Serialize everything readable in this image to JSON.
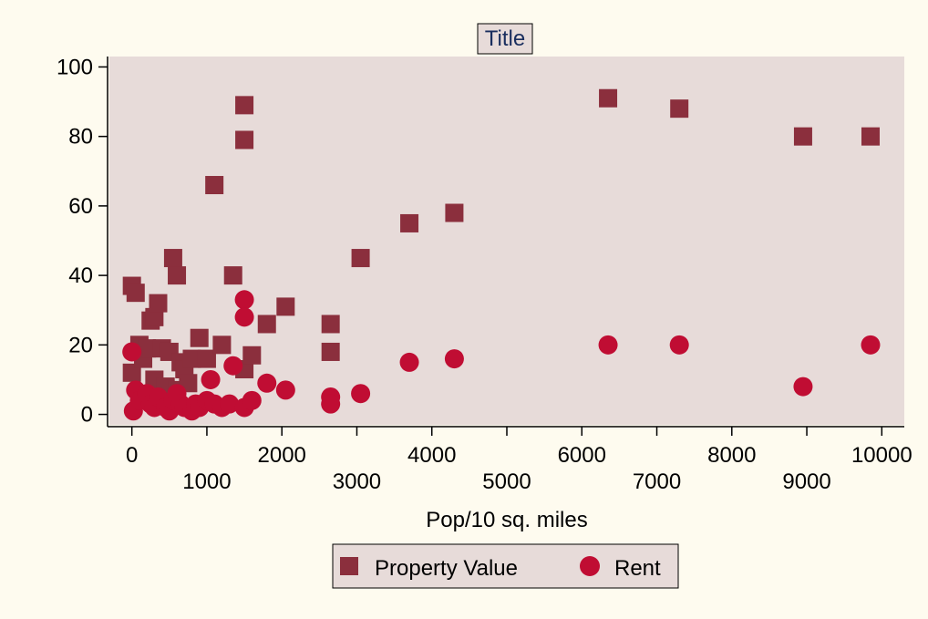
{
  "chart_data": {
    "type": "scatter",
    "title": "Title",
    "xlabel": "Pop/10 sq. miles",
    "ylabel": "",
    "xlim": [
      -300,
      10300
    ],
    "ylim": [
      -3,
      103
    ],
    "x_ticks": [
      0,
      1000,
      2000,
      3000,
      4000,
      5000,
      6000,
      7000,
      8000,
      9000,
      10000
    ],
    "x_tick_labels": [
      "0",
      "1000",
      "2000",
      "3000",
      "4000",
      "5000",
      "6000",
      "7000",
      "8000",
      "9000",
      "10000"
    ],
    "y_ticks": [
      0,
      20,
      40,
      60,
      80,
      100
    ],
    "y_tick_labels": [
      "0",
      "20",
      "40",
      "60",
      "80",
      "100"
    ],
    "grid": false,
    "legend_position": "bottom-center",
    "plot_background": "#e7dbd9",
    "page_background": "#fefbef",
    "series": [
      {
        "name": "Property Value",
        "marker": "square",
        "color": "#8b2f3d",
        "points": [
          [
            0,
            37
          ],
          [
            50,
            35
          ],
          [
            0,
            12
          ],
          [
            100,
            20
          ],
          [
            150,
            16
          ],
          [
            250,
            27
          ],
          [
            300,
            28
          ],
          [
            350,
            32
          ],
          [
            200,
            19
          ],
          [
            400,
            19
          ],
          [
            550,
            45
          ],
          [
            600,
            40
          ],
          [
            500,
            18
          ],
          [
            650,
            15
          ],
          [
            700,
            13
          ],
          [
            800,
            16
          ],
          [
            900,
            22
          ],
          [
            1000,
            16
          ],
          [
            1100,
            66
          ],
          [
            1200,
            20
          ],
          [
            1350,
            40
          ],
          [
            1500,
            89
          ],
          [
            1500,
            79
          ],
          [
            1500,
            13
          ],
          [
            1600,
            17
          ],
          [
            1800,
            26
          ],
          [
            2050,
            31
          ],
          [
            2650,
            26
          ],
          [
            2650,
            18
          ],
          [
            3050,
            45
          ],
          [
            3700,
            55
          ],
          [
            4300,
            58
          ],
          [
            6350,
            91
          ],
          [
            7300,
            88
          ],
          [
            8950,
            80
          ],
          [
            9850,
            80
          ],
          [
            300,
            10
          ],
          [
            450,
            8
          ],
          [
            600,
            7
          ],
          [
            750,
            9
          ]
        ]
      },
      {
        "name": "Rent",
        "marker": "circle",
        "color": "#c00d33",
        "points": [
          [
            0,
            18
          ],
          [
            50,
            7
          ],
          [
            20,
            1
          ],
          [
            100,
            4
          ],
          [
            200,
            6
          ],
          [
            250,
            3
          ],
          [
            300,
            2
          ],
          [
            350,
            5
          ],
          [
            450,
            2
          ],
          [
            500,
            1
          ],
          [
            550,
            4
          ],
          [
            600,
            6
          ],
          [
            650,
            3
          ],
          [
            700,
            2
          ],
          [
            800,
            1
          ],
          [
            850,
            3
          ],
          [
            900,
            2
          ],
          [
            1000,
            4
          ],
          [
            1050,
            10
          ],
          [
            1100,
            3
          ],
          [
            1200,
            2
          ],
          [
            1300,
            3
          ],
          [
            1350,
            14
          ],
          [
            1500,
            33
          ],
          [
            1500,
            28
          ],
          [
            1500,
            2
          ],
          [
            1600,
            4
          ],
          [
            1800,
            9
          ],
          [
            2050,
            7
          ],
          [
            2650,
            5
          ],
          [
            2650,
            3
          ],
          [
            3050,
            6
          ],
          [
            3700,
            15
          ],
          [
            4300,
            16
          ],
          [
            6350,
            20
          ],
          [
            7300,
            20
          ],
          [
            8950,
            8
          ],
          [
            9850,
            20
          ]
        ]
      }
    ]
  }
}
